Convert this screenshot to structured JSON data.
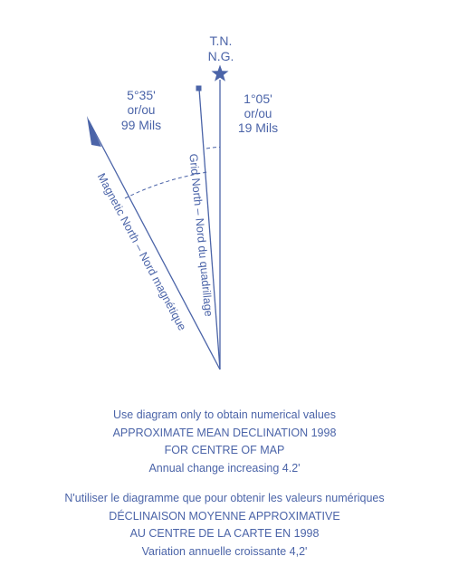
{
  "diagram": {
    "true_north_label": "T.N.",
    "grid_north_label_top": "N.G.",
    "grid_angle": {
      "degrees": "5°35'",
      "or": "or/ou",
      "mils": "99 Mils"
    },
    "true_angle": {
      "degrees": "1°05'",
      "or": "or/ou",
      "mils": "19 Mils"
    },
    "grid_north_line_label": "Grid North – Nord du quadrillage",
    "magnetic_north_line_label": "Magnetic North – Nord magnétique",
    "colors": {
      "ink": "#4b64a8"
    },
    "icons": [
      "star-icon",
      "square-marker-icon",
      "half-arrow-icon"
    ]
  },
  "caption_en": {
    "line1": "Use diagram only to obtain numerical values",
    "line2": "APPROXIMATE MEAN DECLINATION 1998",
    "line3": "FOR CENTRE OF MAP",
    "line4": "Annual change increasing 4.2'"
  },
  "caption_fr": {
    "line1": "N'utiliser le diagramme que pour obtenir les valeurs numériques",
    "line2": "DÉCLINAISON MOYENNE APPROXIMATIVE",
    "line3": "AU CENTRE DE LA CARTE EN 1998",
    "line4": "Variation annuelle croissante 4,2'"
  }
}
